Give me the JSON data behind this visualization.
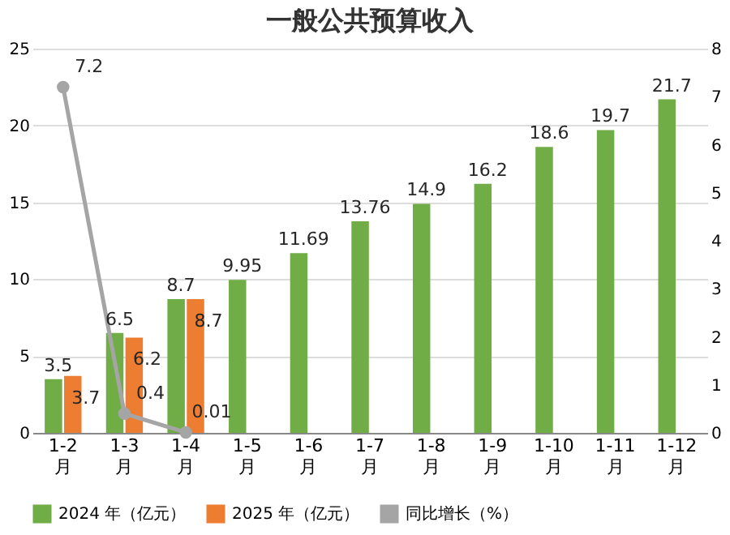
{
  "chart_data": {
    "type": "bar",
    "title": "一般公共预算收入",
    "categories": [
      "1-2 月",
      "1-3 月",
      "1-4 月",
      "1-5 月",
      "1-6 月",
      "1-7 月",
      "1-8 月",
      "1-9 月",
      "1-10 月",
      "1-11 月",
      "1-12 月"
    ],
    "series": [
      {
        "name": "2024 年（亿元）",
        "color": "#70ad47",
        "values": [
          3.5,
          6.5,
          8.7,
          9.95,
          11.69,
          13.76,
          14.9,
          16.2,
          18.6,
          19.7,
          21.7
        ]
      },
      {
        "name": "2025 年（亿元）",
        "color": "#ed7d31",
        "values": [
          3.7,
          6.2,
          8.7,
          null,
          null,
          null,
          null,
          null,
          null,
          null,
          null
        ]
      },
      {
        "name": "同比增长（%）",
        "color": "#a5a5a5",
        "type": "line",
        "axis": "y2",
        "marker": "circle",
        "values": [
          7.2,
          0.4,
          0.01,
          null,
          null,
          null,
          null,
          null,
          null,
          null,
          null
        ]
      }
    ],
    "ylim": [
      0,
      25
    ],
    "yticks": [
      0,
      5,
      10,
      15,
      20,
      25
    ],
    "y2lim": [
      0,
      8
    ],
    "y2ticks": [
      0,
      1,
      2,
      3,
      4,
      5,
      6,
      7,
      8
    ],
    "data_labels": true,
    "grid": "y",
    "legend": "bottom"
  }
}
